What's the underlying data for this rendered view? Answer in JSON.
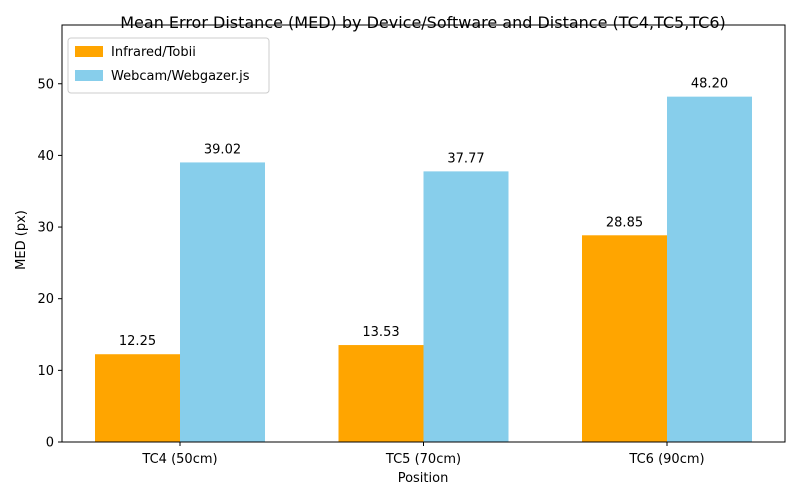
{
  "chart_data": {
    "type": "bar",
    "title": "Mean Error Distance (MED) by Device/Software and Distance (TC4,TC5,TC6)",
    "xlabel": "Position",
    "ylabel": "MED (px)",
    "categories": [
      "TC4 (50cm)",
      "TC5 (70cm)",
      "TC6 (90cm)"
    ],
    "series": [
      {
        "name": "Infrared/Tobii",
        "values": [
          12.25,
          13.53,
          28.85
        ],
        "labels": [
          "12.25",
          "13.53",
          "28.85"
        ],
        "color": "#FFA500"
      },
      {
        "name": "Webcam/Webgazer.js",
        "values": [
          39.02,
          37.77,
          48.2
        ],
        "labels": [
          "39.02",
          "37.77",
          "48.20"
        ],
        "color": "#87CEEB"
      }
    ],
    "ylim": [
      0,
      58.2
    ],
    "yticks": [
      0,
      10,
      20,
      30,
      40,
      50
    ],
    "ytick_labels": [
      "0",
      "10",
      "20",
      "30",
      "40",
      "50"
    ],
    "grid": false,
    "legend_position": "top-left"
  }
}
